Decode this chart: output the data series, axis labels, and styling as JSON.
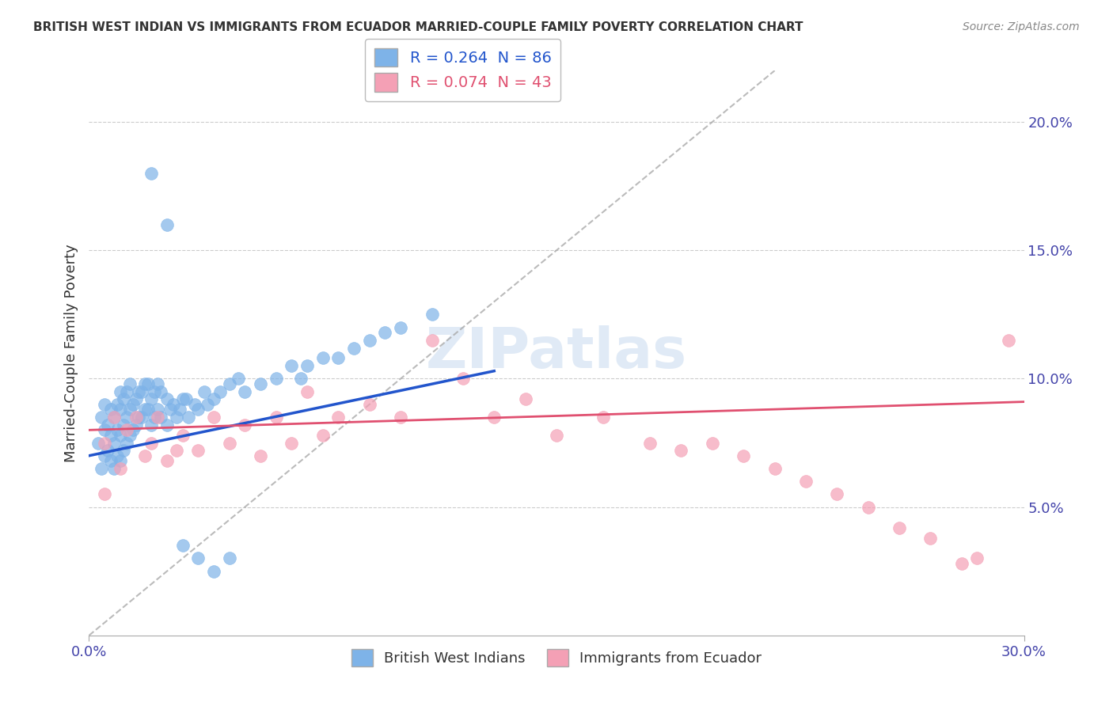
{
  "title": "BRITISH WEST INDIAN VS IMMIGRANTS FROM ECUADOR MARRIED-COUPLE FAMILY POVERTY CORRELATION CHART",
  "source": "Source: ZipAtlas.com",
  "ylabel": "Married-Couple Family Poverty",
  "xlim": [
    0.0,
    0.3
  ],
  "ylim": [
    0.0,
    0.22
  ],
  "blue_R": 0.264,
  "blue_N": 86,
  "pink_R": 0.074,
  "pink_N": 43,
  "blue_color": "#7EB3E8",
  "pink_color": "#F4A0B5",
  "blue_line_color": "#2255CC",
  "pink_line_color": "#E05070",
  "diagonal_color": "#AAAAAA",
  "legend_label_blue": "British West Indians",
  "legend_label_pink": "Immigrants from Ecuador",
  "background_color": "#FFFFFF",
  "grid_color": "#CCCCCC",
  "title_color": "#333333",
  "axis_label_color": "#4444AA",
  "blue_x": [
    0.003,
    0.004,
    0.004,
    0.005,
    0.005,
    0.005,
    0.006,
    0.006,
    0.007,
    0.007,
    0.007,
    0.008,
    0.008,
    0.008,
    0.009,
    0.009,
    0.009,
    0.01,
    0.01,
    0.01,
    0.01,
    0.011,
    0.011,
    0.011,
    0.012,
    0.012,
    0.012,
    0.013,
    0.013,
    0.013,
    0.014,
    0.014,
    0.015,
    0.015,
    0.016,
    0.016,
    0.017,
    0.017,
    0.018,
    0.018,
    0.019,
    0.019,
    0.02,
    0.02,
    0.021,
    0.021,
    0.022,
    0.022,
    0.023,
    0.023,
    0.025,
    0.025,
    0.026,
    0.027,
    0.028,
    0.029,
    0.03,
    0.031,
    0.032,
    0.034,
    0.035,
    0.037,
    0.038,
    0.04,
    0.042,
    0.045,
    0.048,
    0.05,
    0.055,
    0.06,
    0.065,
    0.068,
    0.07,
    0.075,
    0.08,
    0.085,
    0.09,
    0.095,
    0.1,
    0.11,
    0.02,
    0.025,
    0.03,
    0.035,
    0.04,
    0.045
  ],
  "blue_y": [
    0.075,
    0.065,
    0.085,
    0.07,
    0.08,
    0.09,
    0.072,
    0.082,
    0.068,
    0.078,
    0.088,
    0.065,
    0.075,
    0.085,
    0.07,
    0.08,
    0.09,
    0.068,
    0.078,
    0.088,
    0.095,
    0.072,
    0.082,
    0.092,
    0.075,
    0.085,
    0.095,
    0.078,
    0.088,
    0.098,
    0.08,
    0.09,
    0.082,
    0.092,
    0.085,
    0.095,
    0.085,
    0.095,
    0.088,
    0.098,
    0.088,
    0.098,
    0.082,
    0.092,
    0.085,
    0.095,
    0.088,
    0.098,
    0.085,
    0.095,
    0.082,
    0.092,
    0.088,
    0.09,
    0.085,
    0.088,
    0.092,
    0.092,
    0.085,
    0.09,
    0.088,
    0.095,
    0.09,
    0.092,
    0.095,
    0.098,
    0.1,
    0.095,
    0.098,
    0.1,
    0.105,
    0.1,
    0.105,
    0.108,
    0.108,
    0.112,
    0.115,
    0.118,
    0.12,
    0.125,
    0.18,
    0.16,
    0.035,
    0.03,
    0.025,
    0.03
  ],
  "pink_x": [
    0.005,
    0.008,
    0.01,
    0.012,
    0.015,
    0.018,
    0.02,
    0.022,
    0.025,
    0.028,
    0.03,
    0.035,
    0.04,
    0.045,
    0.05,
    0.055,
    0.06,
    0.065,
    0.07,
    0.075,
    0.08,
    0.09,
    0.1,
    0.11,
    0.12,
    0.13,
    0.14,
    0.15,
    0.165,
    0.18,
    0.19,
    0.2,
    0.21,
    0.22,
    0.23,
    0.24,
    0.25,
    0.26,
    0.27,
    0.28,
    0.005,
    0.285,
    0.295
  ],
  "pink_y": [
    0.075,
    0.085,
    0.065,
    0.08,
    0.085,
    0.07,
    0.075,
    0.085,
    0.068,
    0.072,
    0.078,
    0.072,
    0.085,
    0.075,
    0.082,
    0.07,
    0.085,
    0.075,
    0.095,
    0.078,
    0.085,
    0.09,
    0.085,
    0.115,
    0.1,
    0.085,
    0.092,
    0.078,
    0.085,
    0.075,
    0.072,
    0.075,
    0.07,
    0.065,
    0.06,
    0.055,
    0.05,
    0.042,
    0.038,
    0.028,
    0.055,
    0.03,
    0.115
  ]
}
